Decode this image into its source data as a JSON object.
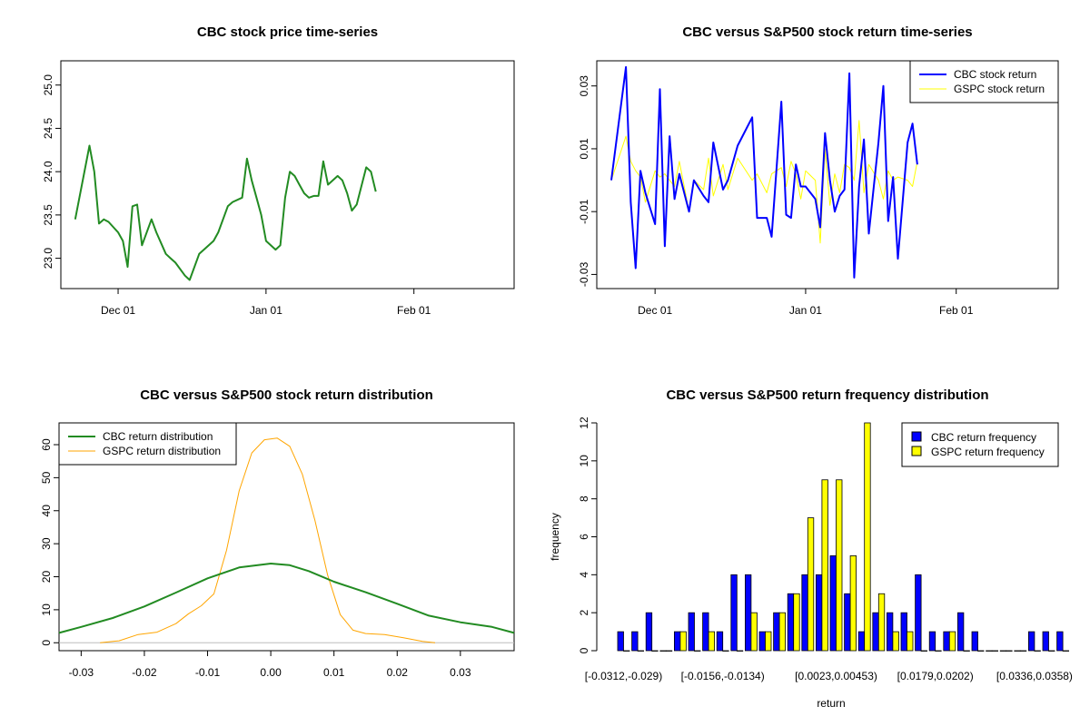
{
  "chart_data": [
    {
      "id": "price",
      "type": "line",
      "title": "CBC stock price time-series",
      "xlabel": "",
      "ylabel": "",
      "x_ticks": [
        {
          "label": "Dec 01",
          "day": 9
        },
        {
          "label": "Jan 01",
          "day": 40
        },
        {
          "label": "Feb 01",
          "day": 71
        }
      ],
      "xlim": [
        -3,
        92
      ],
      "ylim": [
        22.65,
        25.28
      ],
      "y_ticks": [
        "23.0",
        "23.5",
        "24.0",
        "24.5",
        "25.0"
      ],
      "y_tick_values": [
        23.0,
        23.5,
        24.0,
        24.5,
        25.0
      ],
      "series": [
        {
          "name": "CBC stock price",
          "color": "#228B22",
          "x": [
            0,
            3,
            4,
            5,
            6,
            7,
            9,
            10,
            11,
            12,
            13,
            14,
            16,
            17,
            19,
            20,
            21,
            23,
            24,
            26,
            29,
            30,
            32,
            33,
            35,
            36,
            37,
            38,
            39,
            40,
            42,
            43,
            44,
            45,
            46,
            47,
            48,
            49,
            50,
            51,
            52,
            53,
            55,
            56,
            57,
            58,
            59,
            61,
            62,
            63
          ],
          "y": [
            23.45,
            24.3,
            24.0,
            23.4,
            23.45,
            23.42,
            23.3,
            23.2,
            22.9,
            23.6,
            23.62,
            23.15,
            23.45,
            23.3,
            23.05,
            23.0,
            22.95,
            22.8,
            22.75,
            23.05,
            23.2,
            23.3,
            23.6,
            23.65,
            23.7,
            24.15,
            23.9,
            23.7,
            23.5,
            23.2,
            23.1,
            23.15,
            23.7,
            24.0,
            23.95,
            23.85,
            23.75,
            23.7,
            23.72,
            23.72,
            24.12,
            23.85,
            23.95,
            23.9,
            23.75,
            23.55,
            23.62,
            24.05,
            24.0,
            23.77
          ]
        }
      ]
    },
    {
      "id": "returns",
      "type": "line",
      "title": "CBC versus S&P500 stock return time-series",
      "xlabel": "",
      "ylabel": "",
      "x_ticks": [
        {
          "label": "Dec 01",
          "day": 9
        },
        {
          "label": "Jan 01",
          "day": 40
        },
        {
          "label": "Feb 01",
          "day": 71
        }
      ],
      "xlim": [
        -3,
        92
      ],
      "ylim": [
        -0.0345,
        0.038
      ],
      "y_ticks": [
        "-0.03",
        "-0.01",
        "0.01",
        "0.03"
      ],
      "y_tick_values": [
        -0.03,
        -0.01,
        0.01,
        0.03
      ],
      "legend": {
        "position": "top-right",
        "entries": [
          "CBC stock return",
          "GSPC stock return"
        ]
      },
      "series": [
        {
          "name": "CBC stock return",
          "color": "#0000FF",
          "x": [
            0,
            3,
            4,
            5,
            6,
            7,
            9,
            10,
            11,
            12,
            13,
            14,
            16,
            17,
            19,
            20,
            21,
            23,
            24,
            26,
            29,
            30,
            32,
            33,
            35,
            36,
            37,
            38,
            39,
            40,
            42,
            43,
            44,
            45,
            46,
            47,
            48,
            49,
            50,
            51,
            52,
            53,
            55,
            56,
            57,
            58,
            59,
            61,
            62,
            63
          ],
          "y": [
            0.0,
            0.036,
            -0.007,
            -0.028,
            0.003,
            -0.004,
            -0.014,
            0.029,
            -0.021,
            0.014,
            -0.006,
            0.002,
            -0.01,
            0.0,
            -0.005,
            -0.007,
            0.012,
            -0.003,
            0.0,
            0.011,
            0.02,
            -0.012,
            -0.012,
            -0.018,
            0.025,
            -0.011,
            -0.012,
            0.005,
            -0.002,
            -0.002,
            -0.006,
            -0.015,
            0.015,
            0.0,
            -0.01,
            -0.005,
            -0.003,
            0.034,
            -0.031,
            -0.002,
            0.013,
            -0.017,
            0.012,
            0.03,
            -0.013,
            0.001,
            -0.025,
            0.012,
            0.018,
            0.005
          ]
        },
        {
          "name": "GSPC stock return",
          "color": "#FFFF00",
          "x": [
            0,
            3,
            4,
            5,
            6,
            7,
            9,
            10,
            11,
            12,
            13,
            14,
            16,
            17,
            19,
            20,
            21,
            23,
            24,
            26,
            29,
            30,
            32,
            33,
            35,
            36,
            37,
            38,
            39,
            40,
            42,
            43,
            44,
            45,
            46,
            47,
            48,
            49,
            50,
            51,
            52,
            53,
            55,
            56,
            57,
            58,
            59,
            61,
            62,
            63
          ],
          "y": [
            0.0,
            0.014,
            0.006,
            0.003,
            0.001,
            -0.007,
            0.003,
            0.001,
            0.002,
            0.0,
            -0.002,
            0.006,
            -0.01,
            0.0,
            -0.003,
            0.007,
            -0.005,
            0.005,
            -0.003,
            0.007,
            0.0,
            0.002,
            -0.004,
            0.002,
            0.004,
            -0.002,
            0.006,
            0.002,
            -0.006,
            0.003,
            0.0,
            -0.02,
            0.01,
            -0.008,
            0.002,
            -0.004,
            0.005,
            0.004,
            0.0,
            0.019,
            -0.004,
            0.005,
            0.0,
            -0.006,
            0.003,
            0.0,
            0.001,
            0.0,
            -0.002,
            0.006
          ]
        }
      ]
    },
    {
      "id": "density",
      "type": "line",
      "title": "CBC versus S&P500 stock return distribution",
      "xlabel": "",
      "ylabel": "",
      "xlim": [
        -0.0335,
        0.0385
      ],
      "ylim": [
        -2.4,
        66.6
      ],
      "x_ticks": [
        "-0.03",
        "-0.02",
        "-0.01",
        "0.00",
        "0.01",
        "0.02",
        "0.03"
      ],
      "x_tick_values": [
        -0.03,
        -0.02,
        -0.01,
        0.0,
        0.01,
        0.02,
        0.03
      ],
      "y_ticks": [
        "0",
        "10",
        "20",
        "30",
        "40",
        "50",
        "60"
      ],
      "y_tick_values": [
        0,
        10,
        20,
        30,
        40,
        50,
        60
      ],
      "legend": {
        "position": "top-left",
        "entries": [
          "CBC return distribution",
          "GSPC return distribution"
        ]
      },
      "series": [
        {
          "name": "CBC return distribution",
          "color": "#228B22",
          "x": [
            -0.0335,
            -0.03,
            -0.025,
            -0.02,
            -0.015,
            -0.01,
            -0.005,
            0.0,
            0.003,
            0.006,
            0.01,
            0.015,
            0.02,
            0.025,
            0.03,
            0.035,
            0.0385
          ],
          "y": [
            3,
            4.8,
            7.5,
            11,
            15.2,
            19.5,
            22.8,
            24,
            23.5,
            21.7,
            18.5,
            15.3,
            11.8,
            8.2,
            6.2,
            4.8,
            3
          ]
        },
        {
          "name": "GSPC return distribution",
          "color": "#FFA500",
          "x": [
            -0.027,
            -0.024,
            -0.021,
            -0.018,
            -0.015,
            -0.013,
            -0.011,
            -0.009,
            -0.007,
            -0.005,
            -0.003,
            -0.001,
            0.001,
            0.003,
            0.005,
            0.007,
            0.009,
            0.011,
            0.013,
            0.015,
            0.018,
            0.021,
            0.024,
            0.026
          ],
          "y": [
            0,
            0.6,
            2.5,
            3.2,
            5.8,
            8.8,
            11.2,
            14.8,
            28,
            46,
            57.5,
            61.5,
            62,
            59.5,
            51,
            37,
            20.5,
            8.5,
            3.8,
            2.8,
            2.5,
            1.5,
            0.4,
            0
          ]
        },
        {
          "name": "zero line",
          "color": "#BEBEBE",
          "x": [
            -0.0335,
            0.0385
          ],
          "y": [
            0,
            0
          ]
        }
      ]
    },
    {
      "id": "freq",
      "type": "bar",
      "title": "CBC versus S&P500 return frequency distribution",
      "xlabel": "return",
      "ylabel": "frequency",
      "ylim": [
        0,
        12
      ],
      "y_ticks": [
        "0",
        "2",
        "4",
        "6",
        "8",
        "10",
        "12"
      ],
      "y_tick_values": [
        0,
        2,
        4,
        6,
        8,
        10,
        12
      ],
      "x_tick_labels": [
        "[-0.0312,-0.029)",
        "[-0.0156,-0.0134)",
        "[0.0023,0.00453)",
        "[0.0179,0.0202)",
        "[0.0336,0.0358)"
      ],
      "x_tick_bins": [
        0,
        7,
        15,
        22,
        29
      ],
      "legend": {
        "position": "top-right",
        "entries": [
          "CBC return frequency",
          "GSPC return frequency"
        ]
      },
      "series": [
        {
          "name": "CBC return frequency",
          "color": "#0000FF",
          "values": [
            1,
            1,
            2,
            0,
            1,
            2,
            2,
            1,
            4,
            4,
            1,
            2,
            3,
            4,
            4,
            5,
            3,
            1,
            2,
            2,
            2,
            4,
            1,
            1,
            2,
            1,
            0,
            0,
            0,
            1,
            1,
            1
          ]
        },
        {
          "name": "GSPC return frequency",
          "color": "#FFFF00",
          "values": [
            0,
            0,
            0,
            0,
            1,
            0,
            1,
            0,
            0,
            2,
            1,
            2,
            3,
            7,
            9,
            9,
            5,
            12,
            3,
            1,
            1,
            0,
            0,
            1,
            0,
            0,
            0,
            0,
            0,
            0,
            0,
            0
          ]
        }
      ]
    }
  ]
}
